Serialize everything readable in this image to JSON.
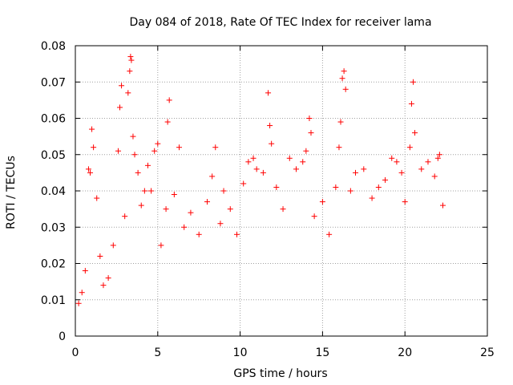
{
  "chart_data": {
    "type": "scatter",
    "title": "Day 084 of 2018, Rate Of TEC Index for receiver lama",
    "xlabel": "GPS time / hours",
    "ylabel": "ROTI / TECUs",
    "xlim": [
      0,
      25
    ],
    "ylim": [
      0,
      0.08
    ],
    "xticks": [
      0,
      5,
      10,
      15,
      20,
      25
    ],
    "xtick_labels": [
      "0",
      "5",
      "10",
      "15",
      "20",
      "25"
    ],
    "yticks": [
      0,
      0.01,
      0.02,
      0.03,
      0.04,
      0.05,
      0.06,
      0.07,
      0.08
    ],
    "ytick_labels": [
      "0",
      "0.01",
      "0.02",
      "0.03",
      "0.04",
      "0.05",
      "0.06",
      "0.07",
      "0.08"
    ],
    "grid": true,
    "marker": "+",
    "marker_color": "#ff0000",
    "series": [
      {
        "name": "ROTI",
        "color": "#ff0000",
        "points": [
          [
            0.2,
            0.009
          ],
          [
            0.4,
            0.012
          ],
          [
            0.6,
            0.018
          ],
          [
            0.8,
            0.046
          ],
          [
            0.9,
            0.045
          ],
          [
            1.0,
            0.057
          ],
          [
            1.1,
            0.052
          ],
          [
            1.3,
            0.038
          ],
          [
            1.5,
            0.022
          ],
          [
            1.7,
            0.014
          ],
          [
            2.0,
            0.016
          ],
          [
            2.3,
            0.025
          ],
          [
            2.6,
            0.051
          ],
          [
            2.7,
            0.063
          ],
          [
            2.8,
            0.069
          ],
          [
            3.0,
            0.033
          ],
          [
            3.2,
            0.067
          ],
          [
            3.3,
            0.073
          ],
          [
            3.35,
            0.077
          ],
          [
            3.4,
            0.076
          ],
          [
            3.5,
            0.055
          ],
          [
            3.6,
            0.05
          ],
          [
            3.8,
            0.045
          ],
          [
            4.0,
            0.036
          ],
          [
            4.2,
            0.04
          ],
          [
            4.4,
            0.047
          ],
          [
            4.6,
            0.04
          ],
          [
            4.8,
            0.051
          ],
          [
            5.0,
            0.053
          ],
          [
            5.2,
            0.025
          ],
          [
            5.5,
            0.035
          ],
          [
            5.6,
            0.059
          ],
          [
            5.7,
            0.065
          ],
          [
            6.0,
            0.039
          ],
          [
            6.3,
            0.052
          ],
          [
            6.6,
            0.03
          ],
          [
            7.0,
            0.034
          ],
          [
            7.5,
            0.028
          ],
          [
            8.0,
            0.037
          ],
          [
            8.3,
            0.044
          ],
          [
            8.5,
            0.052
          ],
          [
            8.8,
            0.031
          ],
          [
            9.0,
            0.04
          ],
          [
            9.4,
            0.035
          ],
          [
            9.8,
            0.028
          ],
          [
            10.2,
            0.042
          ],
          [
            10.5,
            0.048
          ],
          [
            10.8,
            0.049
          ],
          [
            11.0,
            0.046
          ],
          [
            11.4,
            0.045
          ],
          [
            11.7,
            0.067
          ],
          [
            11.8,
            0.058
          ],
          [
            11.9,
            0.053
          ],
          [
            12.2,
            0.041
          ],
          [
            12.6,
            0.035
          ],
          [
            13.0,
            0.049
          ],
          [
            13.4,
            0.046
          ],
          [
            13.8,
            0.048
          ],
          [
            14.0,
            0.051
          ],
          [
            14.2,
            0.06
          ],
          [
            14.3,
            0.056
          ],
          [
            14.5,
            0.033
          ],
          [
            15.0,
            0.037
          ],
          [
            15.4,
            0.028
          ],
          [
            15.8,
            0.041
          ],
          [
            16.0,
            0.052
          ],
          [
            16.1,
            0.059
          ],
          [
            16.2,
            0.071
          ],
          [
            16.3,
            0.073
          ],
          [
            16.4,
            0.068
          ],
          [
            16.7,
            0.04
          ],
          [
            17.0,
            0.045
          ],
          [
            17.5,
            0.046
          ],
          [
            18.0,
            0.038
          ],
          [
            18.4,
            0.041
          ],
          [
            18.8,
            0.043
          ],
          [
            19.2,
            0.049
          ],
          [
            19.5,
            0.048
          ],
          [
            19.8,
            0.045
          ],
          [
            20.0,
            0.037
          ],
          [
            20.3,
            0.052
          ],
          [
            20.4,
            0.064
          ],
          [
            20.5,
            0.07
          ],
          [
            20.6,
            0.056
          ],
          [
            21.0,
            0.046
          ],
          [
            21.4,
            0.048
          ],
          [
            21.8,
            0.044
          ],
          [
            22.0,
            0.049
          ],
          [
            22.1,
            0.05
          ],
          [
            22.3,
            0.036
          ]
        ]
      }
    ]
  }
}
